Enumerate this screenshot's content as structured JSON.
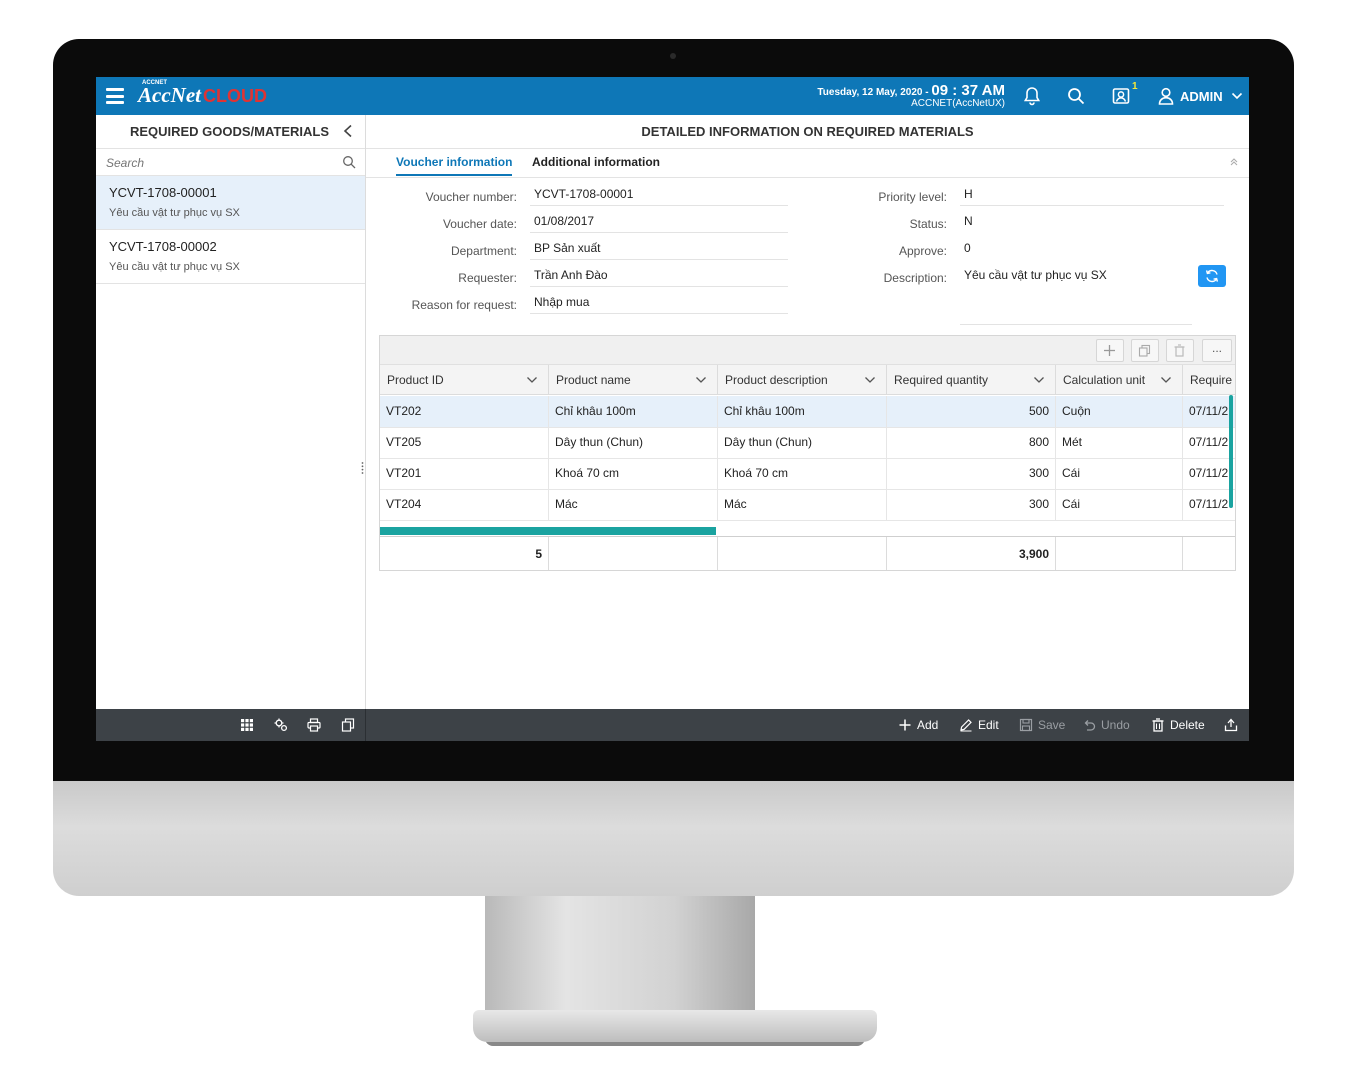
{
  "topbar": {
    "date": "Tuesday, 12 May, 2020",
    "separator": " - ",
    "time": "09 : 37 AM",
    "company": "ACCNET(AccNetUX)",
    "notification_badge": "1",
    "user": "ADMIN",
    "logo_text": "AccNet",
    "logo_cloud": "CLOUD",
    "logo_small": "ACCNET",
    "colors": {
      "bar": "#0e77b7",
      "logo_cloud": "#e03333"
    }
  },
  "left_panel": {
    "title": "REQUIRED GOODS/MATERIALS",
    "search_placeholder": "Search",
    "items": [
      {
        "code": "YCVT-1708-00001",
        "desc": "Yêu cầu vật tư phục vụ SX"
      },
      {
        "code": "YCVT-1708-00002",
        "desc": "Yêu cầu vật tư phục vụ SX"
      }
    ]
  },
  "right_panel": {
    "title": "DETAILED INFORMATION ON REQUIRED MATERIALS",
    "tabs": [
      "Voucher information",
      "Additional information"
    ],
    "fields_left": [
      {
        "label": "Voucher number:",
        "value": "YCVT-1708-00001"
      },
      {
        "label": "Voucher date:",
        "value": "01/08/2017"
      },
      {
        "label": "Department:",
        "value": "BP Sản xuất"
      },
      {
        "label": "Requester:",
        "value": "Trần Anh Đào"
      },
      {
        "label": "Reason for request:",
        "value": "Nhập mua"
      }
    ],
    "fields_right": [
      {
        "label": "Priority level:",
        "value": "H"
      },
      {
        "label": "Status:",
        "value": "N"
      },
      {
        "label": "Approve:",
        "value": "0"
      },
      {
        "label": "Description:",
        "value": "Yêu cầu vật tư phục vụ SX"
      }
    ]
  },
  "grid": {
    "toolbar": {
      "more_label": "..."
    },
    "columns": [
      "Product ID",
      "Product name",
      "Product description",
      "Required quantity",
      "Calculation unit",
      "Require"
    ],
    "rows": [
      {
        "id": "VT202",
        "name": "Chỉ khâu 100m",
        "desc": "Chỉ khâu 100m",
        "qty": "500",
        "unit": "Cuộn",
        "date": "07/11/2"
      },
      {
        "id": "VT205",
        "name": "Dây thun (Chun)",
        "desc": "Dây thun (Chun)",
        "qty": "800",
        "unit": "Mét",
        "date": "07/11/2"
      },
      {
        "id": "VT201",
        "name": "Khoá 70 cm",
        "desc": "Khoá 70 cm",
        "qty": "300",
        "unit": "Cái",
        "date": "07/11/2"
      },
      {
        "id": "VT204",
        "name": "Mác",
        "desc": "Mác",
        "qty": "300",
        "unit": "Cái",
        "date": "07/11/2"
      }
    ],
    "footer": {
      "count": "5",
      "total_qty": "3,900"
    },
    "accent_color": "#1aa3a0"
  },
  "actions": {
    "add": "Add",
    "edit": "Edit",
    "save": "Save",
    "undo": "Undo",
    "delete": "Delete"
  },
  "icons": [
    "menu-icon",
    "bell-icon",
    "search-icon",
    "contact-icon",
    "user-icon",
    "chevron-down-icon",
    "chevron-left-icon",
    "refresh-icon",
    "plus-icon",
    "copy-icon",
    "trash-icon",
    "grid-icon",
    "settings-icon",
    "print-icon",
    "pencil-icon",
    "save-icon",
    "undo-icon",
    "export-icon"
  ]
}
